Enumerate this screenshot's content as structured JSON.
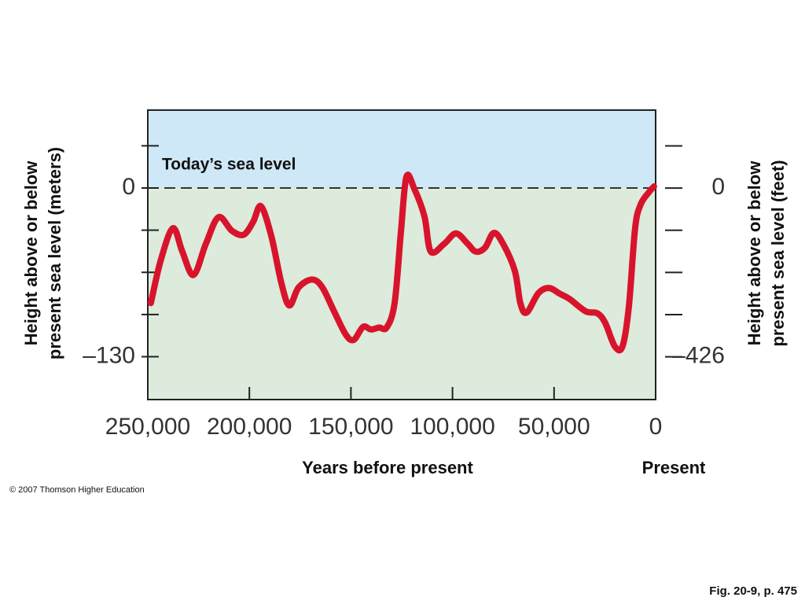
{
  "chart_data": {
    "type": "line",
    "ylabel": [
      "Height above or below",
      "present sea level (meters)"
    ],
    "y2label": [
      "Height above or below",
      "present sea level (feet)"
    ],
    "xlabel": "Years before present",
    "xend_label": "Present",
    "annotation": "Today’s sea level",
    "credit": "© 2007 Thomson Higher Education",
    "figure_ref": "Fig. 20-9, p. 475",
    "xlim": [
      250000,
      0
    ],
    "xticks": [
      {
        "value": 250000,
        "label": "250,000"
      },
      {
        "value": 200000,
        "label": "200,000"
      },
      {
        "value": 150000,
        "label": "150,000"
      },
      {
        "value": 100000,
        "label": "100,000"
      },
      {
        "value": 50000,
        "label": "50,000"
      },
      0
    ],
    "ylim": [
      -163,
      60
    ],
    "yticks": [
      0,
      {
        "value": -130,
        "label": "–130"
      }
    ],
    "yminor_ticks": [
      32.5,
      -32.5,
      -65,
      -97.5
    ],
    "y2lim": [
      -534,
      197
    ],
    "y2ticks": [
      0,
      {
        "value": -426,
        "label": "–426"
      }
    ],
    "y2minor_ticks": [
      106.5,
      -106.5,
      -213,
      -319.5
    ],
    "reference_line": 0,
    "above_color": "#cfe8f7",
    "below_color": "#dcebdb",
    "series": [
      {
        "color": "#d8142c",
        "x": [
          248500,
          243500,
          237600,
          233000,
          227500,
          221400,
          215200,
          208600,
          202800,
          198100,
          194300,
          189200,
          184200,
          180300,
          175700,
          169100,
          164100,
          158300,
          152500,
          148600,
          144000,
          140100,
          136200,
          132400,
          128500,
          125400,
          122700,
          118800,
          113800,
          110700,
          104100,
          98300,
          92500,
          88600,
          84000,
          79700,
          75100,
          69300,
          66600,
          63500,
          57700,
          52600,
          47200,
          42200,
          34400,
          28600,
          24800,
          20100,
          16300,
          13200,
          10100,
          7400,
          3500,
          800
        ],
        "values": [
          -88.7,
          -55,
          -31,
          -49,
          -67,
          -43,
          -22.5,
          -33,
          -36,
          -26,
          -14,
          -37,
          -73.5,
          -90.5,
          -76.5,
          -70.5,
          -76.5,
          -95,
          -113,
          -117,
          -107,
          -109,
          -107.5,
          -107.5,
          -88.7,
          -34,
          8.5,
          -0.6,
          -22,
          -49,
          -43,
          -35,
          -43,
          -49,
          -46,
          -34.6,
          -43,
          -64,
          -88.7,
          -96,
          -81,
          -77,
          -81.4,
          -85.7,
          -95,
          -96.6,
          -104,
          -122,
          -122,
          -91.7,
          -31,
          -12.8,
          -3.6,
          1.2
        ]
      }
    ]
  }
}
